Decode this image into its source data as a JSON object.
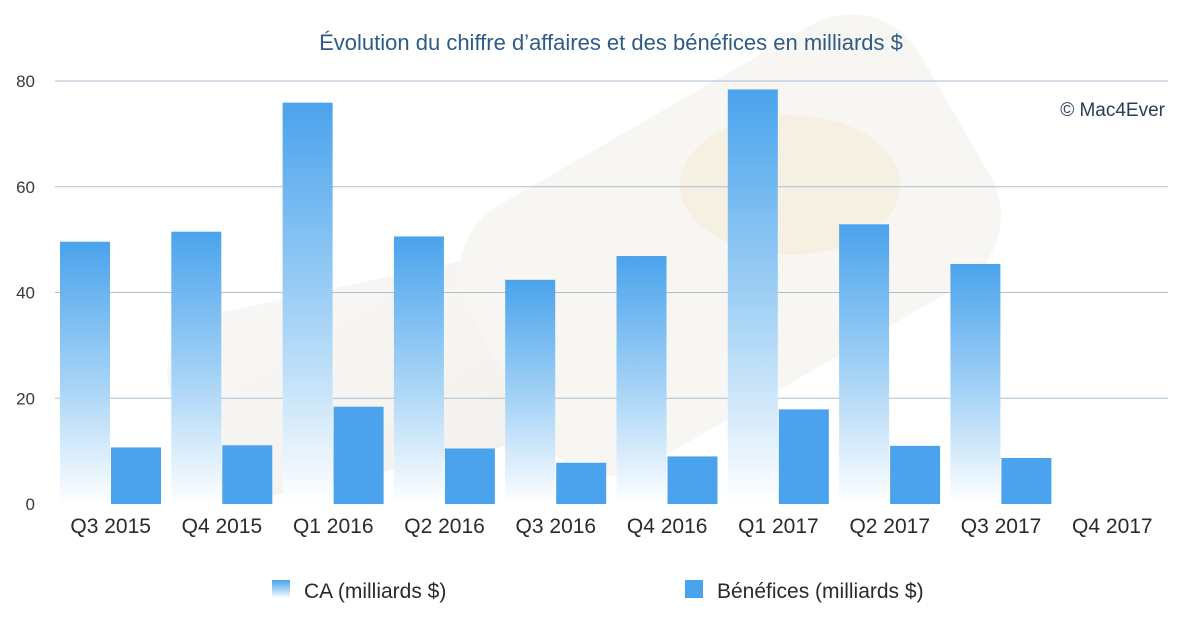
{
  "chart_data": {
    "type": "bar",
    "title": "Évolution du chiffre d’affaires et des bénéfices en milliards $",
    "categories": [
      "Q3 2015",
      "Q4 2015",
      "Q1 2016",
      "Q2 2016",
      "Q3 2016",
      "Q4 2016",
      "Q1 2017",
      "Q2 2017",
      "Q3 2017",
      "Q4 2017"
    ],
    "series": [
      {
        "name": "CA (milliards $)",
        "values": [
          49.6,
          51.5,
          75.9,
          50.6,
          42.4,
          46.9,
          78.4,
          52.9,
          45.4,
          null
        ],
        "color": "#4aa3ec",
        "fill": "gradient"
      },
      {
        "name": "Bénéfices (milliards $)",
        "values": [
          10.7,
          11.1,
          18.4,
          10.5,
          7.8,
          9.0,
          17.9,
          11.0,
          8.7,
          null
        ],
        "color": "#4aa3ec",
        "fill": "solid"
      }
    ],
    "ylim": [
      0,
      80
    ],
    "yticks": [
      0,
      20,
      40,
      60,
      80
    ],
    "grid": true,
    "legend_position": "bottom",
    "xlabel": "",
    "ylabel": ""
  },
  "watermark": "© Mac4Ever",
  "colors": {
    "title": "#2f5b86",
    "grid": "#a9bfd4",
    "bar": "#4aa3ec"
  }
}
